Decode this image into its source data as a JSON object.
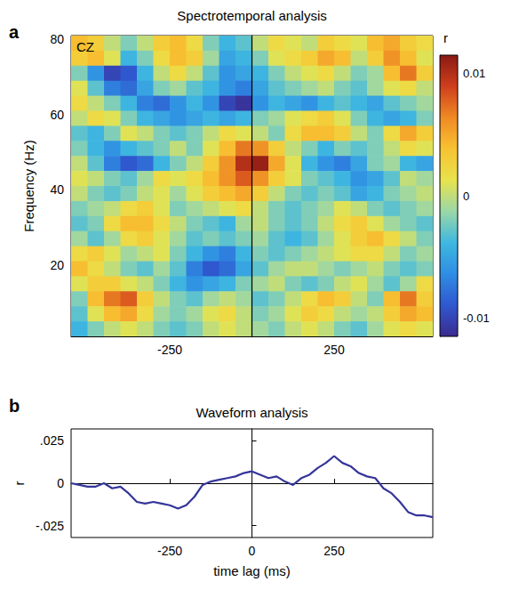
{
  "chart_data": [
    {
      "type": "heatmap",
      "panel": "a",
      "title": "Spectrotemporal analysis",
      "annotation": "CZ",
      "y_label": "Frequency (Hz)",
      "x": [
        -525,
        -475,
        -425,
        -375,
        -325,
        -275,
        -225,
        -175,
        -125,
        -75,
        -25,
        25,
        75,
        125,
        175,
        225,
        275,
        325,
        375,
        425,
        475,
        525
      ],
      "y": [
        79,
        75,
        71,
        67,
        63,
        59,
        55,
        51,
        47,
        43,
        39,
        35,
        31,
        27,
        23,
        19,
        15,
        11,
        7,
        3
      ],
      "cells": [
        [
          0.004,
          0.003,
          0.0,
          -0.002,
          0.0,
          0.003,
          0.004,
          0.002,
          -0.002,
          -0.004,
          -0.003,
          0.0,
          0.002,
          0.001,
          0.0,
          0.003,
          0.002,
          0.001,
          0.004,
          0.005,
          0.003,
          0.002
        ],
        [
          0.003,
          0.004,
          0.001,
          -0.004,
          -0.002,
          0.002,
          0.004,
          0.003,
          -0.001,
          -0.005,
          -0.004,
          -0.002,
          0.001,
          0.002,
          0.003,
          0.005,
          0.004,
          0.0,
          0.003,
          0.006,
          0.004,
          0.001
        ],
        [
          -0.002,
          -0.006,
          -0.01,
          -0.009,
          -0.004,
          0.0,
          0.002,
          0.0,
          -0.003,
          -0.006,
          -0.005,
          -0.004,
          -0.002,
          0.0,
          0.001,
          0.002,
          0.0,
          -0.002,
          -0.001,
          0.004,
          0.007,
          0.003
        ],
        [
          0.001,
          -0.003,
          -0.007,
          -0.008,
          -0.005,
          -0.002,
          -0.001,
          -0.003,
          -0.004,
          -0.006,
          -0.007,
          -0.005,
          -0.003,
          -0.002,
          -0.001,
          0.0,
          -0.002,
          -0.003,
          -0.001,
          0.001,
          0.002,
          0.0
        ],
        [
          0.002,
          0.0,
          -0.002,
          -0.004,
          -0.007,
          -0.008,
          -0.006,
          -0.004,
          -0.006,
          -0.01,
          -0.011,
          -0.006,
          -0.004,
          -0.005,
          -0.006,
          -0.004,
          -0.003,
          -0.004,
          -0.005,
          -0.003,
          -0.002,
          -0.001
        ],
        [
          0.0,
          0.002,
          0.001,
          -0.002,
          -0.004,
          -0.005,
          -0.006,
          -0.005,
          -0.004,
          -0.005,
          -0.004,
          -0.002,
          -0.001,
          0.001,
          0.002,
          0.003,
          0.001,
          -0.002,
          -0.004,
          -0.005,
          -0.004,
          -0.002
        ],
        [
          -0.003,
          -0.004,
          -0.002,
          0.001,
          0.0,
          -0.002,
          -0.003,
          -0.002,
          0.0,
          0.002,
          0.001,
          0.0,
          -0.002,
          0.002,
          0.004,
          0.004,
          0.003,
          0.0,
          -0.002,
          0.002,
          0.005,
          0.003
        ],
        [
          -0.002,
          -0.004,
          -0.006,
          -0.004,
          -0.003,
          -0.002,
          0.0,
          -0.002,
          0.001,
          0.004,
          0.007,
          0.006,
          0.003,
          0.0,
          -0.002,
          -0.004,
          -0.002,
          -0.003,
          -0.002,
          0.0,
          0.002,
          0.001
        ],
        [
          0.0,
          -0.003,
          -0.007,
          -0.009,
          -0.008,
          -0.004,
          -0.002,
          0.0,
          0.003,
          0.006,
          0.01,
          0.011,
          0.005,
          0.001,
          -0.004,
          -0.006,
          -0.007,
          -0.005,
          -0.002,
          -0.001,
          -0.004,
          -0.005
        ],
        [
          0.001,
          0.0,
          -0.002,
          -0.003,
          -0.001,
          0.002,
          0.001,
          0.002,
          0.004,
          0.006,
          0.008,
          0.006,
          0.003,
          0.001,
          -0.002,
          -0.003,
          -0.004,
          -0.006,
          -0.005,
          -0.003,
          0.0,
          -0.001
        ],
        [
          0.0,
          -0.002,
          -0.003,
          -0.002,
          0.0,
          0.001,
          -0.001,
          0.001,
          0.003,
          0.004,
          0.005,
          0.003,
          0.0,
          -0.002,
          -0.003,
          -0.002,
          -0.003,
          -0.005,
          -0.004,
          -0.002,
          -0.001,
          0.0
        ],
        [
          -0.002,
          -0.001,
          0.0,
          0.002,
          0.003,
          0.001,
          -0.002,
          -0.001,
          0.0,
          0.001,
          0.002,
          0.0,
          -0.002,
          -0.003,
          -0.002,
          -0.001,
          0.001,
          0.0,
          -0.002,
          -0.003,
          -0.002,
          -0.001
        ],
        [
          -0.003,
          -0.002,
          0.002,
          0.004,
          0.004,
          0.002,
          0.0,
          -0.002,
          -0.003,
          -0.004,
          -0.001,
          0.0,
          -0.002,
          -0.003,
          -0.002,
          0.0,
          0.002,
          0.003,
          0.001,
          -0.001,
          -0.002,
          -0.003
        ],
        [
          -0.001,
          -0.003,
          -0.001,
          0.002,
          0.003,
          0.001,
          -0.001,
          -0.003,
          -0.002,
          -0.003,
          -0.002,
          -0.001,
          -0.003,
          -0.004,
          -0.003,
          -0.001,
          0.001,
          0.003,
          0.004,
          0.002,
          0.0,
          -0.002
        ],
        [
          0.002,
          0.003,
          0.001,
          -0.001,
          0.0,
          0.001,
          -0.002,
          -0.004,
          -0.006,
          -0.007,
          -0.004,
          -0.002,
          -0.003,
          -0.002,
          -0.001,
          0.0,
          0.001,
          0.002,
          0.002,
          0.0,
          -0.002,
          -0.001
        ],
        [
          0.004,
          0.002,
          0.0,
          -0.002,
          -0.003,
          -0.001,
          -0.003,
          -0.007,
          -0.009,
          -0.008,
          -0.005,
          -0.003,
          -0.001,
          0.0,
          0.0,
          -0.001,
          -0.002,
          -0.001,
          0.0,
          -0.002,
          -0.003,
          -0.002
        ],
        [
          0.001,
          0.003,
          0.003,
          0.001,
          0.0,
          -0.002,
          -0.004,
          -0.006,
          -0.005,
          -0.004,
          -0.002,
          -0.001,
          0.0,
          -0.002,
          -0.003,
          -0.002,
          0.0,
          0.001,
          -0.001,
          -0.003,
          -0.001,
          0.002
        ],
        [
          -0.002,
          0.004,
          0.007,
          0.008,
          0.003,
          0.0,
          -0.002,
          -0.003,
          -0.001,
          0.0,
          -0.001,
          -0.003,
          -0.002,
          0.0,
          0.002,
          0.004,
          0.003,
          0.0,
          -0.002,
          0.004,
          0.007,
          0.003
        ],
        [
          -0.003,
          0.001,
          0.004,
          0.005,
          0.002,
          -0.001,
          -0.002,
          -0.001,
          0.001,
          0.002,
          0.0,
          -0.002,
          -0.001,
          0.001,
          0.003,
          0.002,
          0.0,
          -0.001,
          0.0,
          0.003,
          0.005,
          0.004
        ],
        [
          -0.004,
          -0.002,
          0.0,
          0.001,
          0.0,
          -0.002,
          -0.003,
          -0.002,
          0.0,
          0.001,
          0.0,
          -0.001,
          -0.002,
          0.0,
          0.001,
          0.0,
          -0.002,
          -0.003,
          -0.001,
          0.001,
          0.002,
          0.001
        ]
      ],
      "xlim": [
        -550,
        550
      ],
      "xticks": [
        -250,
        250
      ],
      "ylim": [
        1,
        81
      ],
      "yticks": [
        20,
        40,
        60,
        80
      ],
      "vline_x": 0,
      "colorbar": {
        "label": "r",
        "range": [
          -0.0115,
          0.0115
        ],
        "ticks": [
          -0.01,
          0,
          0.01
        ]
      }
    },
    {
      "type": "line",
      "panel": "b",
      "title": "Waveform analysis",
      "x_label": "time lag (ms)",
      "y_label": "r",
      "x": [
        -550,
        -525,
        -500,
        -475,
        -450,
        -425,
        -400,
        -375,
        -350,
        -325,
        -300,
        -275,
        -250,
        -225,
        -200,
        -175,
        -150,
        -125,
        -100,
        -75,
        -50,
        -25,
        0,
        25,
        50,
        75,
        100,
        125,
        150,
        175,
        200,
        225,
        250,
        275,
        300,
        325,
        350,
        375,
        400,
        425,
        450,
        475,
        500,
        525,
        550
      ],
      "series": [
        {
          "color": "#35359a",
          "values": [
            0.0,
            -0.001,
            -0.002,
            -0.002,
            0.0,
            -0.003,
            -0.002,
            -0.006,
            -0.011,
            -0.012,
            -0.011,
            -0.012,
            -0.013,
            -0.015,
            -0.013,
            -0.008,
            -0.001,
            0.001,
            0.002,
            0.003,
            0.004,
            0.006,
            0.007,
            0.005,
            0.003,
            0.004,
            0.001,
            -0.001,
            0.003,
            0.005,
            0.009,
            0.012,
            0.016,
            0.012,
            0.01,
            0.006,
            0.004,
            0.003,
            -0.003,
            -0.006,
            -0.011,
            -0.017,
            -0.019,
            -0.019,
            -0.02
          ]
        }
      ],
      "xlim": [
        -550,
        550
      ],
      "xticks": [
        -250,
        0,
        250
      ],
      "ylim": [
        -0.032,
        0.032
      ],
      "yticks": [
        {
          "value": -0.025,
          "label": "-.025"
        },
        0,
        {
          "value": 0.025,
          "label": ".025"
        }
      ],
      "vline_x": 0
    }
  ]
}
